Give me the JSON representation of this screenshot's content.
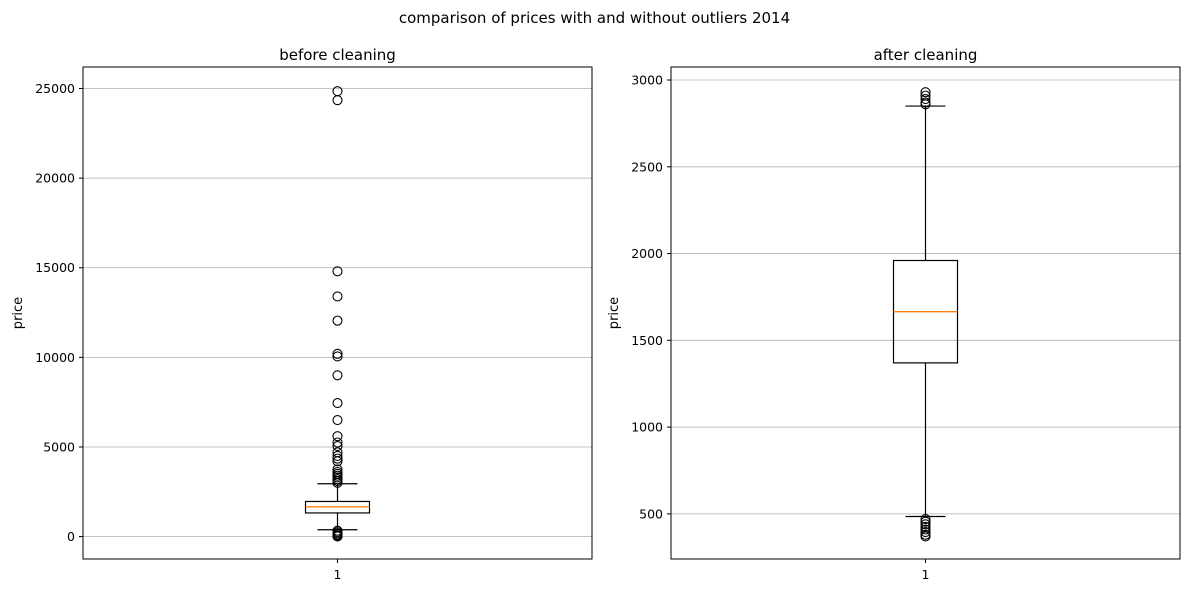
{
  "figure": {
    "suptitle": "comparison of prices with and without outliers 2014"
  },
  "colors": {
    "box": "#000000",
    "median": "#ff7f0e",
    "grid": "#b0b0b0",
    "axes": "#000000"
  },
  "chart_data": [
    {
      "type": "boxplot",
      "title": "before cleaning",
      "ylabel": "price",
      "xlabel": "",
      "categories": [
        "1"
      ],
      "ylim": [
        -1250,
        26200
      ],
      "yticks": [
        0,
        5000,
        10000,
        15000,
        20000,
        25000
      ],
      "grid": "y",
      "box": {
        "q1": 1320,
        "median": 1660,
        "q3": 1960,
        "whisker_low": 380,
        "whisker_high": 2950
      },
      "outliers": [
        24850,
        24350,
        14800,
        13400,
        12050,
        10200,
        10050,
        9000,
        7450,
        6500,
        5600,
        5250,
        5050,
        4700,
        4500,
        4350,
        4200,
        3750,
        3600,
        3500,
        3400,
        3300,
        3200,
        3100,
        3000,
        330,
        250,
        180,
        110,
        50,
        10
      ]
    },
    {
      "type": "boxplot",
      "title": "after cleaning",
      "ylabel": "price",
      "xlabel": "",
      "categories": [
        "1"
      ],
      "ylim": [
        240,
        3075
      ],
      "yticks": [
        500,
        1000,
        1500,
        2000,
        2500,
        3000
      ],
      "grid": "y",
      "box": {
        "q1": 1370,
        "median": 1665,
        "q3": 1960,
        "whisker_low": 485,
        "whisker_high": 2850
      },
      "outliers": [
        2930,
        2910,
        2890,
        2870,
        2860,
        470,
        455,
        440,
        425,
        410,
        395,
        380,
        370
      ]
    }
  ]
}
